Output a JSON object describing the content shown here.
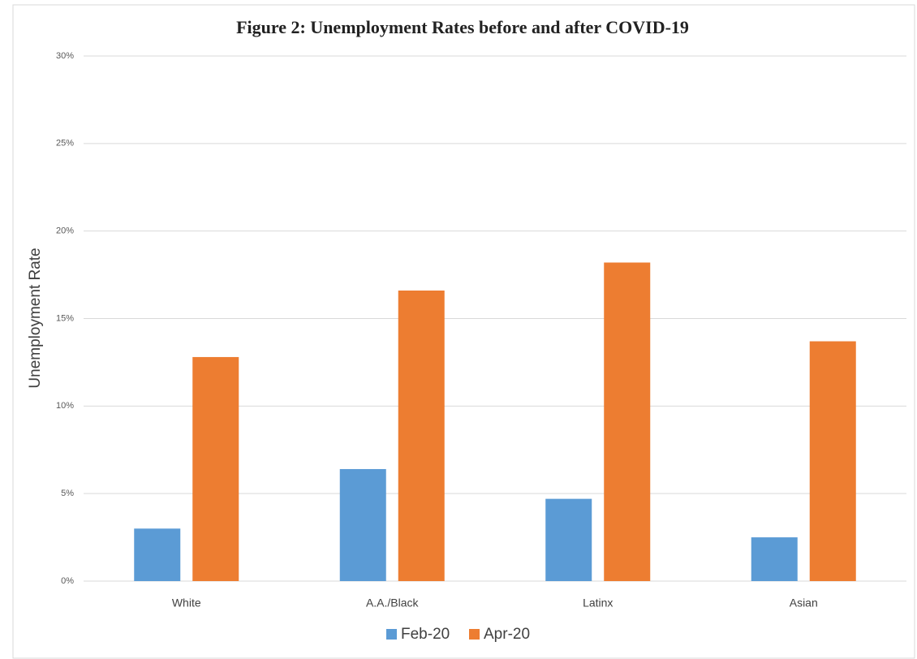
{
  "chart_data": {
    "type": "bar",
    "title": "Figure 2: Unemployment Rates before and after COVID-19",
    "y_label": "Unemployment Rate",
    "categories": [
      "White",
      "A.A./Black",
      "Latinx",
      "Asian"
    ],
    "series": [
      {
        "name": "Feb-20",
        "color": "#5b9bd5",
        "values": [
          3.0,
          6.4,
          4.7,
          2.5
        ]
      },
      {
        "name": "Apr-20",
        "color": "#ed7d31",
        "values": [
          12.8,
          16.6,
          18.2,
          13.7
        ]
      }
    ],
    "ylim": [
      0,
      30
    ],
    "yticks": [
      {
        "value": 0,
        "label": "0%"
      },
      {
        "value": 5,
        "label": "5%"
      },
      {
        "value": 10,
        "label": "10%"
      },
      {
        "value": 15,
        "label": "15%"
      },
      {
        "value": 20,
        "label": "20%"
      },
      {
        "value": 25,
        "label": "25%"
      },
      {
        "value": 30,
        "label": "30%"
      }
    ],
    "grid": true,
    "legend": "bottom"
  }
}
